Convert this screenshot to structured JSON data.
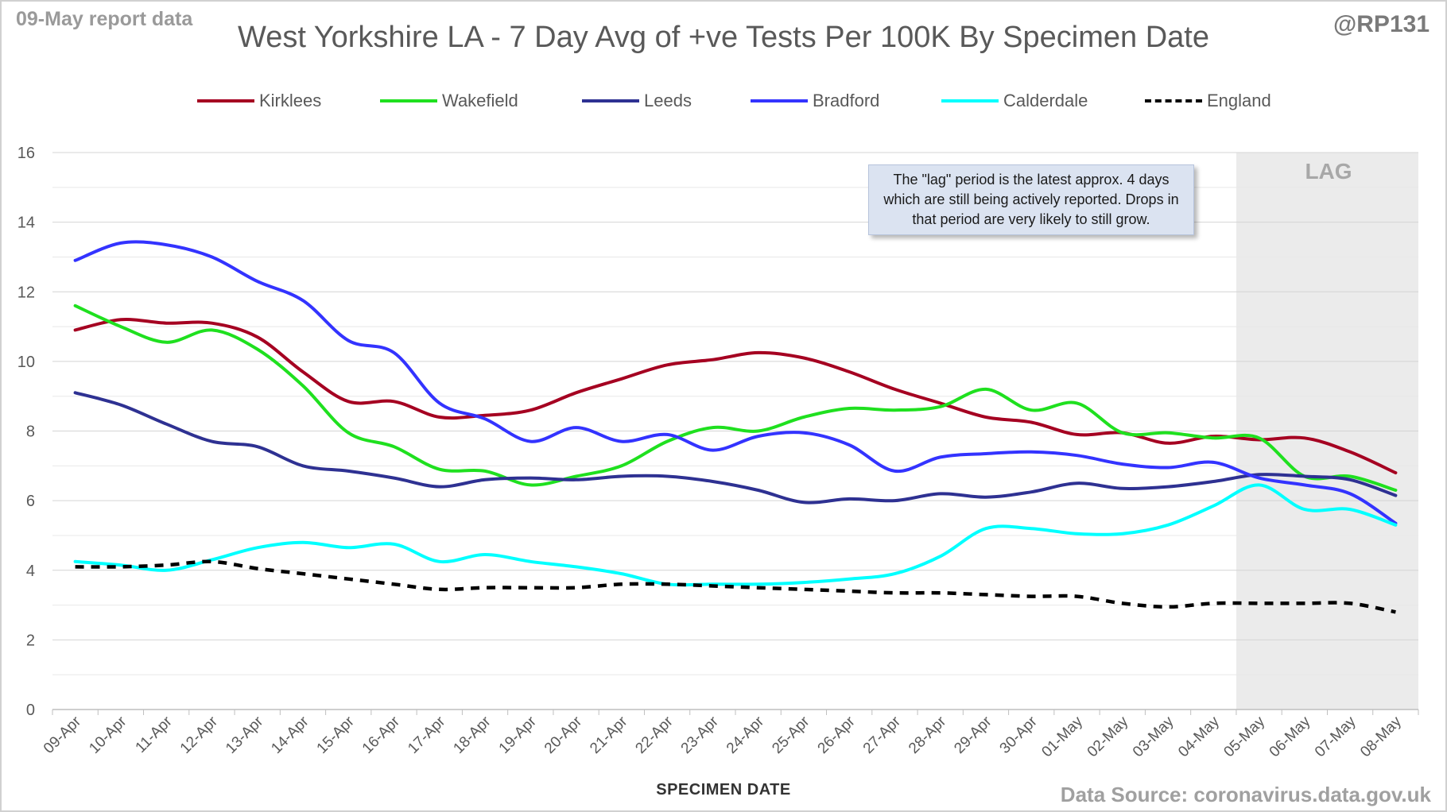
{
  "header": {
    "report_date": "09-May report data",
    "handle": "@RP131",
    "title": "West Yorkshire LA - 7 Day Avg of +ve Tests Per 100K By Specimen Date",
    "source": "Data Source: coronavirus.data.gov.uk"
  },
  "annotation": {
    "text": "The \"lag\" period is the latest approx. 4 days which are still being actively reported. Drops in that period are very likely to still grow.",
    "lag_label": "LAG"
  },
  "chart_data": {
    "type": "line",
    "title": "West Yorkshire LA - 7 Day Avg of +ve Tests Per 100K By Specimen Date",
    "xlabel": "SPECIMEN DATE",
    "ylabel": "",
    "ylim": [
      0,
      16
    ],
    "yticks": [
      0,
      2,
      4,
      6,
      8,
      10,
      12,
      14,
      16
    ],
    "grid": true,
    "legend_position": "top",
    "lag_period": {
      "start": "05-May",
      "end": "08-May"
    },
    "categories": [
      "09-Apr",
      "10-Apr",
      "11-Apr",
      "12-Apr",
      "13-Apr",
      "14-Apr",
      "15-Apr",
      "16-Apr",
      "17-Apr",
      "18-Apr",
      "19-Apr",
      "20-Apr",
      "21-Apr",
      "22-Apr",
      "23-Apr",
      "24-Apr",
      "25-Apr",
      "26-Apr",
      "27-Apr",
      "28-Apr",
      "29-Apr",
      "30-Apr",
      "01-May",
      "02-May",
      "03-May",
      "04-May",
      "05-May",
      "06-May",
      "07-May",
      "08-May"
    ],
    "series": [
      {
        "name": "Kirklees",
        "color": "#a50021",
        "dashed": false,
        "values": [
          10.9,
          11.2,
          11.1,
          11.1,
          10.7,
          9.7,
          8.85,
          8.85,
          8.4,
          8.45,
          8.6,
          9.1,
          9.5,
          9.9,
          10.05,
          10.25,
          10.1,
          9.7,
          9.2,
          8.8,
          8.4,
          8.25,
          7.9,
          7.95,
          7.65,
          7.85,
          7.75,
          7.8,
          7.4,
          6.8
        ]
      },
      {
        "name": "Wakefield",
        "color": "#1fe01f",
        "dashed": false,
        "values": [
          11.6,
          11.0,
          10.55,
          10.9,
          10.35,
          9.3,
          7.95,
          7.55,
          6.9,
          6.85,
          6.45,
          6.7,
          7.0,
          7.7,
          8.1,
          8.0,
          8.4,
          8.65,
          8.6,
          8.7,
          9.2,
          8.6,
          8.8,
          7.95,
          7.95,
          7.8,
          7.8,
          6.7,
          6.7,
          6.3
        ]
      },
      {
        "name": "Leeds",
        "color": "#2e3192",
        "dashed": false,
        "values": [
          9.1,
          8.75,
          8.2,
          7.7,
          7.55,
          7.0,
          6.85,
          6.65,
          6.4,
          6.6,
          6.65,
          6.6,
          6.7,
          6.7,
          6.55,
          6.3,
          5.95,
          6.05,
          6.0,
          6.2,
          6.1,
          6.25,
          6.5,
          6.35,
          6.4,
          6.55,
          6.75,
          6.7,
          6.6,
          6.15
        ]
      },
      {
        "name": "Bradford",
        "color": "#3333ff",
        "dashed": false,
        "values": [
          12.9,
          13.4,
          13.35,
          13.0,
          12.3,
          11.75,
          10.6,
          10.25,
          8.8,
          8.35,
          7.7,
          8.1,
          7.7,
          7.9,
          7.45,
          7.85,
          7.95,
          7.6,
          6.85,
          7.25,
          7.35,
          7.4,
          7.3,
          7.05,
          6.95,
          7.1,
          6.65,
          6.45,
          6.2,
          5.35
        ]
      },
      {
        "name": "Calderdale",
        "color": "#00ffff",
        "dashed": false,
        "values": [
          4.25,
          4.15,
          4.0,
          4.3,
          4.65,
          4.8,
          4.65,
          4.75,
          4.25,
          4.45,
          4.25,
          4.1,
          3.9,
          3.6,
          3.6,
          3.6,
          3.65,
          3.75,
          3.9,
          4.4,
          5.2,
          5.2,
          5.05,
          5.05,
          5.3,
          5.85,
          6.45,
          5.75,
          5.75,
          5.3
        ]
      },
      {
        "name": "England",
        "color": "#000000",
        "dashed": true,
        "values": [
          4.1,
          4.1,
          4.15,
          4.25,
          4.05,
          3.9,
          3.75,
          3.6,
          3.45,
          3.5,
          3.5,
          3.5,
          3.6,
          3.6,
          3.55,
          3.5,
          3.45,
          3.4,
          3.35,
          3.35,
          3.3,
          3.25,
          3.25,
          3.05,
          2.95,
          3.05,
          3.05,
          3.05,
          3.05,
          2.8
        ]
      }
    ]
  }
}
